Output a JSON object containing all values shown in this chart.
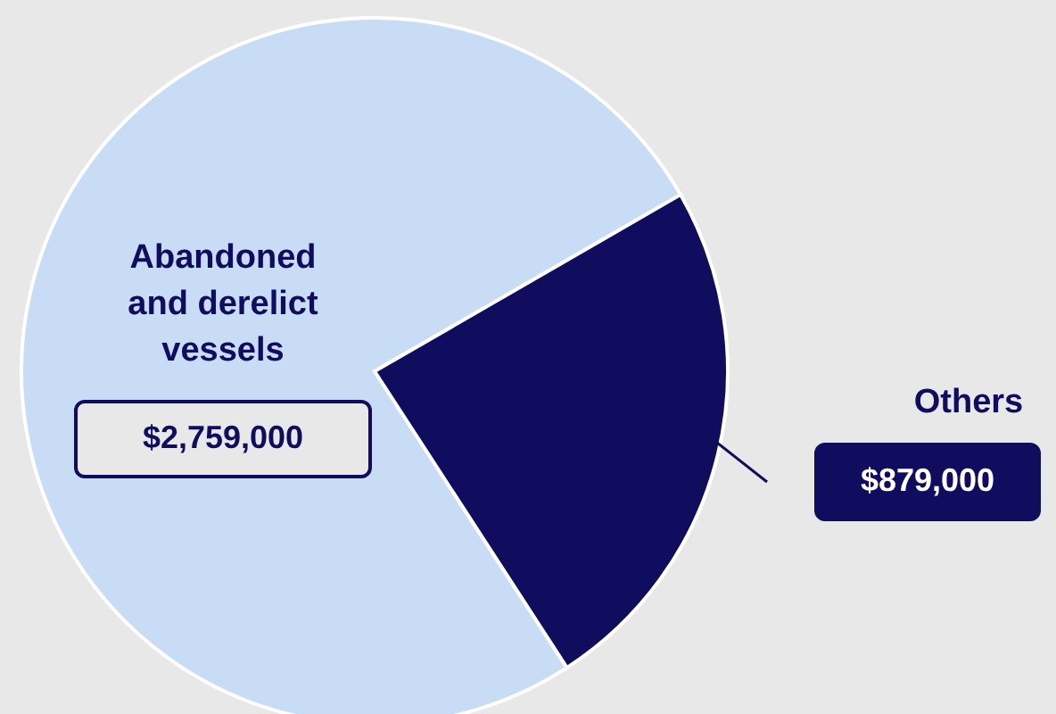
{
  "chart_data": {
    "type": "pie",
    "categories": [
      "Abandoned and derelict vessels",
      "Others"
    ],
    "values": [
      2759000,
      879000
    ],
    "colors": [
      "#c9dcf5",
      "#100c5e"
    ],
    "value_labels": [
      "$2,759,000",
      "$879,000"
    ]
  }
}
